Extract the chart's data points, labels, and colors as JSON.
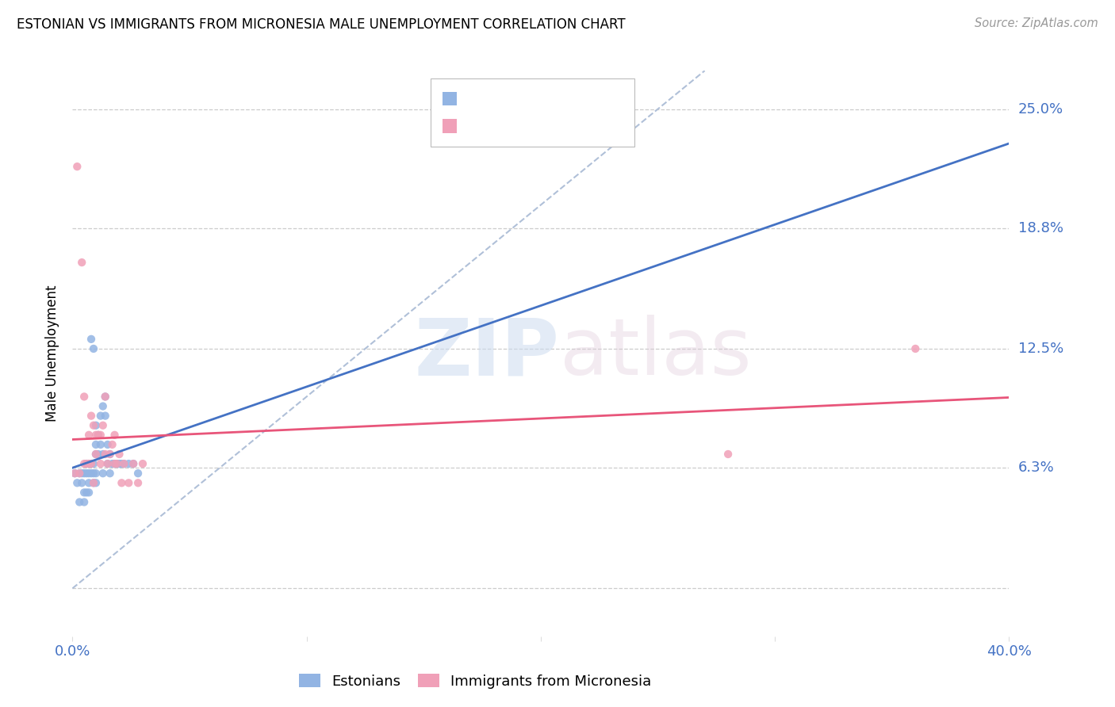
{
  "title": "ESTONIAN VS IMMIGRANTS FROM MICRONESIA MALE UNEMPLOYMENT CORRELATION CHART",
  "source": "Source: ZipAtlas.com",
  "ylabel": "Male Unemployment",
  "y_ticks": [
    0.0,
    0.063,
    0.125,
    0.188,
    0.25
  ],
  "y_tick_labels": [
    "",
    "6.3%",
    "12.5%",
    "18.8%",
    "25.0%"
  ],
  "xlim": [
    0.0,
    0.4
  ],
  "ylim": [
    -0.025,
    0.27
  ],
  "color_blue": "#92b4e3",
  "color_pink": "#f0a0b8",
  "color_blue_line": "#4472c4",
  "color_pink_line": "#e8557a",
  "color_diag": "#b0c0d8",
  "color_label": "#4472c4",
  "background": "#ffffff",
  "estonians_x": [
    0.001,
    0.002,
    0.003,
    0.003,
    0.004,
    0.004,
    0.005,
    0.005,
    0.005,
    0.006,
    0.006,
    0.006,
    0.007,
    0.007,
    0.007,
    0.007,
    0.008,
    0.008,
    0.008,
    0.009,
    0.009,
    0.009,
    0.009,
    0.01,
    0.01,
    0.01,
    0.01,
    0.01,
    0.011,
    0.011,
    0.012,
    0.012,
    0.013,
    0.013,
    0.013,
    0.014,
    0.014,
    0.015,
    0.015,
    0.016,
    0.016,
    0.017,
    0.018,
    0.019,
    0.02,
    0.021,
    0.022,
    0.024,
    0.026,
    0.028
  ],
  "estonians_y": [
    0.06,
    0.055,
    0.06,
    0.045,
    0.055,
    0.06,
    0.06,
    0.045,
    0.05,
    0.06,
    0.065,
    0.05,
    0.055,
    0.06,
    0.065,
    0.05,
    0.06,
    0.065,
    0.13,
    0.055,
    0.06,
    0.065,
    0.125,
    0.07,
    0.075,
    0.055,
    0.06,
    0.085,
    0.07,
    0.08,
    0.075,
    0.09,
    0.06,
    0.07,
    0.095,
    0.09,
    0.1,
    0.065,
    0.075,
    0.06,
    0.07,
    0.065,
    0.065,
    0.065,
    0.065,
    0.065,
    0.065,
    0.065,
    0.065,
    0.06
  ],
  "micronesia_x": [
    0.001,
    0.002,
    0.003,
    0.004,
    0.005,
    0.005,
    0.006,
    0.007,
    0.007,
    0.008,
    0.008,
    0.009,
    0.009,
    0.01,
    0.01,
    0.011,
    0.012,
    0.012,
    0.013,
    0.014,
    0.014,
    0.015,
    0.016,
    0.017,
    0.018,
    0.018,
    0.019,
    0.02,
    0.021,
    0.022,
    0.024,
    0.026,
    0.028,
    0.03,
    0.28,
    0.36
  ],
  "micronesia_y": [
    0.06,
    0.22,
    0.06,
    0.17,
    0.065,
    0.1,
    0.065,
    0.065,
    0.08,
    0.065,
    0.09,
    0.055,
    0.085,
    0.07,
    0.08,
    0.08,
    0.065,
    0.08,
    0.085,
    0.07,
    0.1,
    0.065,
    0.07,
    0.075,
    0.065,
    0.08,
    0.065,
    0.07,
    0.055,
    0.065,
    0.055,
    0.065,
    0.055,
    0.065,
    0.07,
    0.125
  ],
  "label_estonians": "Estonians",
  "label_micronesia": "Immigrants from Micronesia"
}
